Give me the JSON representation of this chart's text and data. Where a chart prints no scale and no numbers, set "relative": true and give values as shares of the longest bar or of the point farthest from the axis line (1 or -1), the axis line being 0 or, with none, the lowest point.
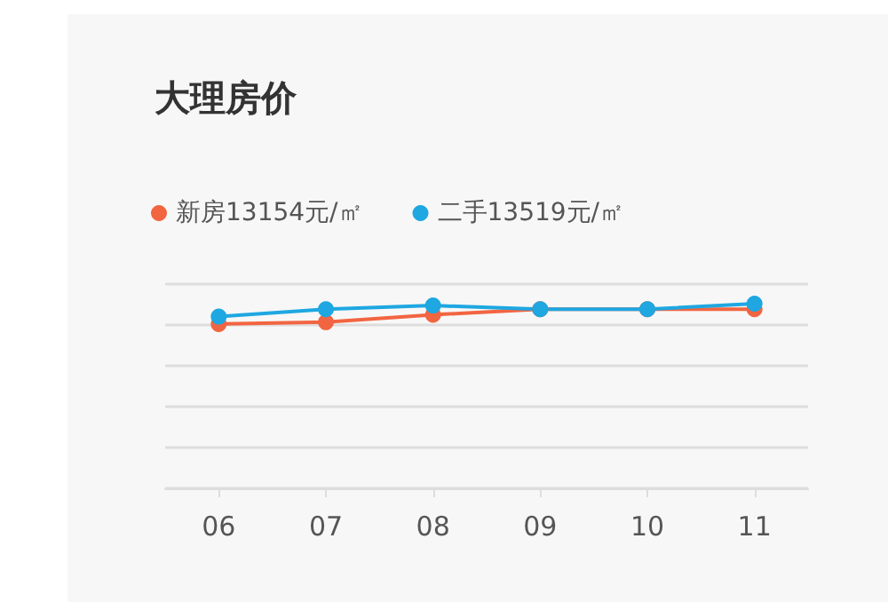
{
  "chart_data": {
    "type": "line",
    "title": "大理房价",
    "relative": true,
    "categories": [
      "06",
      "07",
      "08",
      "09",
      "10",
      "11"
    ],
    "series": [
      {
        "name": "新房13154元/㎡",
        "color": "#f26541",
        "values": [
          0.89,
          0.9,
          0.94,
          0.97,
          0.97,
          0.97
        ]
      },
      {
        "name": "二手13519元/㎡",
        "color": "#1ea7e1",
        "values": [
          0.93,
          0.97,
          0.99,
          0.97,
          0.97,
          1
        ]
      }
    ],
    "marker": "circle",
    "grid": "y",
    "legend": "top left"
  }
}
